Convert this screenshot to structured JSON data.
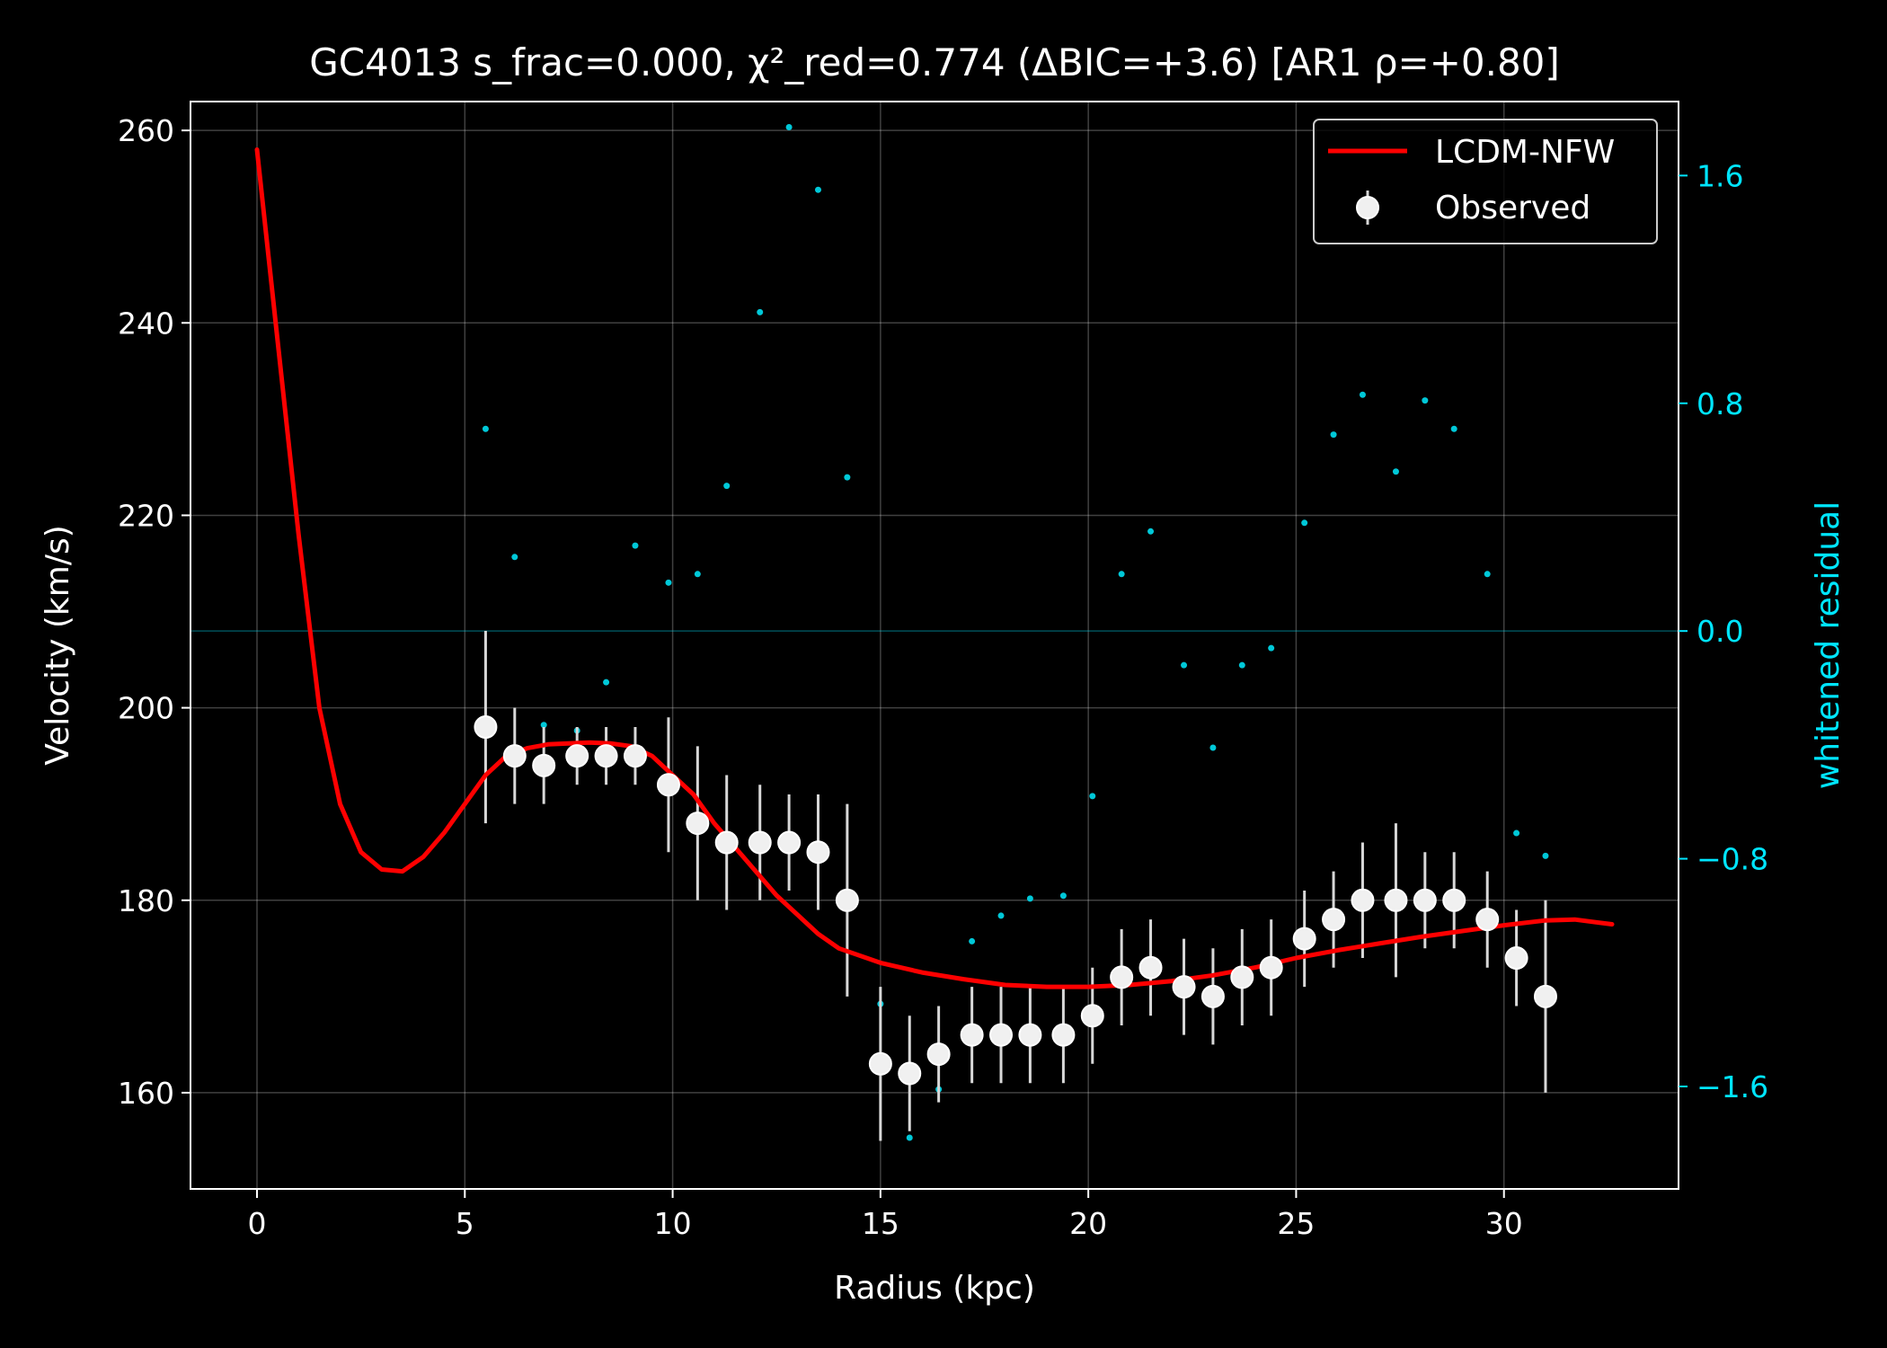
{
  "chart_data": {
    "type": "scatter",
    "title": "GC4013  s_frac=0.000, χ²_red=0.774  (ΔBIC=+3.6) [AR1 ρ=+0.80]",
    "xlabel": "Radius (kpc)",
    "ylabel": "Velocity (km/s)",
    "y2label": "whitened residual",
    "xlim": [
      -1.6,
      34.2
    ],
    "ylim": [
      150,
      263
    ],
    "y2lim": [
      -1.96,
      1.86
    ],
    "xticks": [
      0,
      5,
      10,
      15,
      20,
      25,
      30
    ],
    "yticks": [
      160,
      180,
      200,
      220,
      240,
      260
    ],
    "y2ticks": [
      -1.6,
      -0.8,
      0.0,
      0.8,
      1.6
    ],
    "y2ticklabels": [
      "−1.6",
      "−0.8",
      "0.0",
      "0.8",
      "1.6"
    ],
    "grid": true,
    "legend_position": "top-right",
    "colors": {
      "model": "#ff0000",
      "observed": "#f0f0f0",
      "residual": "#00c8d8",
      "right_axis": "#00e5ff"
    },
    "series": [
      {
        "name": "LCDM-NFW",
        "type": "line",
        "x": [
          0,
          0.5,
          1.0,
          1.5,
          2.0,
          2.5,
          3.0,
          3.5,
          4.0,
          4.5,
          5.0,
          5.5,
          6.0,
          6.5,
          7.0,
          7.5,
          8.0,
          8.5,
          9.0,
          9.5,
          10.0,
          10.5,
          11.0,
          11.5,
          12.0,
          12.5,
          13.0,
          13.5,
          14.0,
          15.0,
          16.0,
          17.0,
          18.0,
          19.0,
          20.0,
          21.0,
          22.0,
          23.0,
          24.0,
          25.0,
          26.0,
          27.0,
          28.0,
          29.0,
          30.0,
          31.0,
          31.7,
          32.6
        ],
        "y": [
          258,
          238,
          218,
          200,
          190,
          185,
          183.2,
          183,
          184.5,
          187,
          190,
          193,
          195,
          195.8,
          196.2,
          196.3,
          196.4,
          196.3,
          196,
          195,
          193,
          191,
          188,
          185.5,
          183,
          180.5,
          178.5,
          176.5,
          175,
          173.5,
          172.5,
          171.8,
          171.2,
          171,
          171,
          171.2,
          171.6,
          172.2,
          173,
          174,
          174.8,
          175.5,
          176.2,
          176.8,
          177.4,
          177.9,
          178,
          177.5
        ]
      },
      {
        "name": "Observed",
        "type": "errorbar",
        "x": [
          5.5,
          6.2,
          6.9,
          7.7,
          8.4,
          9.1,
          9.9,
          10.6,
          11.3,
          12.1,
          12.8,
          13.5,
          14.2,
          15.0,
          15.7,
          16.4,
          17.2,
          17.9,
          18.6,
          19.4,
          20.1,
          20.8,
          21.5,
          22.3,
          23.0,
          23.7,
          24.4,
          25.2,
          25.9,
          26.6,
          27.4,
          28.1,
          28.8,
          29.6,
          30.3,
          31.0
        ],
        "y": [
          198,
          195,
          194,
          195,
          195,
          195,
          192,
          188,
          186,
          186,
          186,
          185,
          180,
          163,
          162,
          164,
          166,
          166,
          166,
          166,
          168,
          172,
          173,
          171,
          170,
          172,
          173,
          176,
          178,
          180,
          180,
          180,
          180,
          178,
          174,
          170
        ],
        "yerr": [
          10,
          5,
          4,
          3,
          3,
          3,
          7,
          8,
          7,
          6,
          5,
          6,
          10,
          8,
          6,
          5,
          5,
          5,
          5,
          5,
          5,
          5,
          5,
          5,
          5,
          5,
          5,
          5,
          5,
          6,
          8,
          5,
          5,
          5,
          5,
          10
        ]
      },
      {
        "type": "residual",
        "axis": "right",
        "x": [
          5.5,
          6.2,
          6.9,
          7.7,
          8.4,
          9.1,
          9.9,
          10.6,
          11.3,
          12.1,
          12.8,
          13.5,
          14.2,
          15.0,
          15.7,
          16.4,
          17.2,
          17.9,
          18.6,
          19.4,
          20.1,
          20.8,
          21.5,
          22.3,
          23.0,
          23.7,
          24.4,
          25.2,
          25.9,
          26.6,
          27.4,
          28.1,
          28.8,
          29.6,
          30.3,
          31.0
        ],
        "y": [
          0.71,
          0.26,
          -0.33,
          -0.35,
          -0.18,
          0.3,
          0.17,
          0.2,
          0.51,
          1.12,
          1.77,
          1.55,
          0.54,
          -1.31,
          -1.78,
          -1.61,
          -1.09,
          -1.0,
          -0.94,
          -0.93,
          -0.58,
          0.2,
          0.35,
          -0.12,
          -0.41,
          -0.12,
          -0.06,
          0.38,
          0.69,
          0.83,
          0.56,
          0.81,
          0.71,
          0.2,
          -0.71,
          -0.79
        ]
      }
    ]
  }
}
